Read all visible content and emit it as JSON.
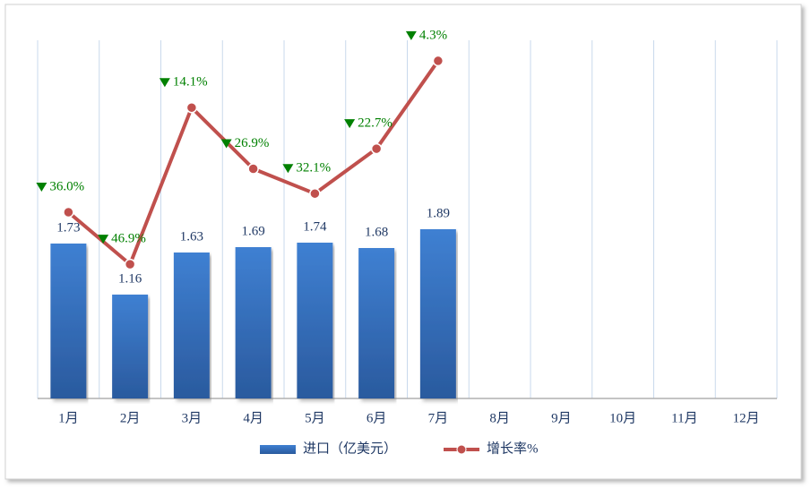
{
  "chart_data": {
    "type": "bar",
    "categories": [
      "1月",
      "2月",
      "3月",
      "4月",
      "5月",
      "6月",
      "7月",
      "8月",
      "9月",
      "10月",
      "11月",
      "12月"
    ],
    "series": [
      {
        "name": "进口（亿美元）",
        "type": "bar",
        "color": "#3a78c8",
        "values": [
          1.73,
          1.16,
          1.63,
          1.69,
          1.74,
          1.68,
          1.89,
          null,
          null,
          null,
          null,
          null
        ]
      },
      {
        "name": "增长率%",
        "type": "line",
        "axis": "y2",
        "color": "#c0504d",
        "values": [
          -36.0,
          -46.9,
          -14.1,
          -26.9,
          -32.1,
          -22.7,
          -4.3,
          null,
          null,
          null,
          null,
          null
        ],
        "value_labels": [
          "36.0%",
          "46.9%",
          "14.1%",
          "26.9%",
          "32.1%",
          "22.7%",
          "4.3%",
          null,
          null,
          null,
          null,
          null
        ]
      }
    ],
    "ylim": [
      0,
      4
    ],
    "y2lim": [
      -75,
      0
    ],
    "grid": true,
    "legend": "bottom"
  }
}
